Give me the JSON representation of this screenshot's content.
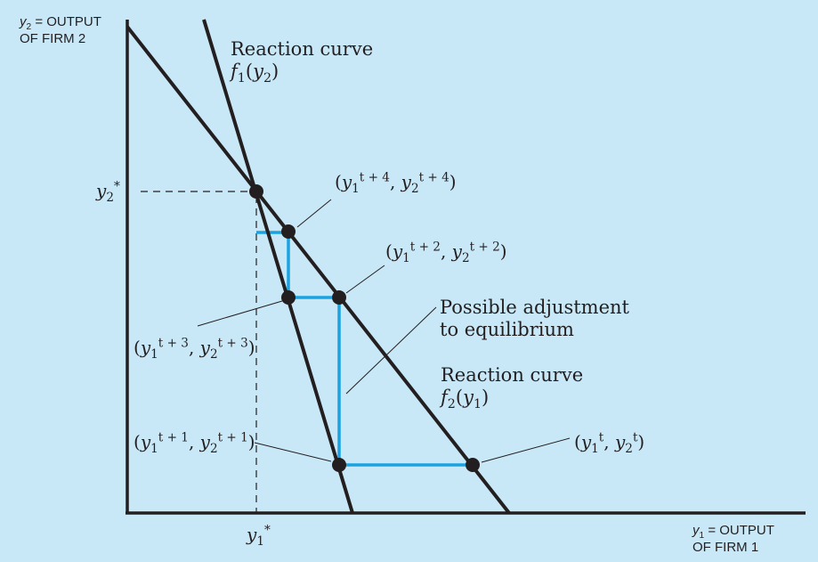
{
  "axes": {
    "y_label_line1_var": "y",
    "y_label_line1_sub": "2",
    "y_label_line1_rest": " = OUTPUT",
    "y_label_line2": "OF FIRM 2",
    "x_label_line1_var": "y",
    "x_label_line1_sub": "1",
    "x_label_line1_rest": " = OUTPUT",
    "x_label_line2": "OF FIRM 1"
  },
  "equilibrium": {
    "y2_star_var": "y",
    "y2_star_sub": "2",
    "y2_star_sup": "*",
    "y1_star_var": "y",
    "y1_star_sub": "1",
    "y1_star_sup": "*"
  },
  "curves": {
    "f1_title": "Reaction curve",
    "f1_func": "f",
    "f1_func_sub": "1",
    "f1_arg_var": "y",
    "f1_arg_sub": "2",
    "f2_title": "Reaction curve",
    "f2_func": "f",
    "f2_func_sub": "2",
    "f2_arg_var": "y",
    "f2_arg_sub": "1"
  },
  "annotation": {
    "line1": "Possible adjustment",
    "line2": "to equilibrium"
  },
  "points": {
    "p_t": {
      "sup1": "t",
      "sup2": "t"
    },
    "p_t1": {
      "sup1": "t + 1",
      "sup2": "t + 1"
    },
    "p_t2": {
      "sup1": "t + 2",
      "sup2": "t + 2"
    },
    "p_t3": {
      "sup1": "t + 3",
      "sup2": "t + 3"
    },
    "p_t4": {
      "sup1": "t + 4",
      "sup2": "t + 4"
    }
  },
  "colors": {
    "background": "#c9e8f7",
    "curve": "#231f20",
    "adjustment_path": "#1aa3e0"
  }
}
